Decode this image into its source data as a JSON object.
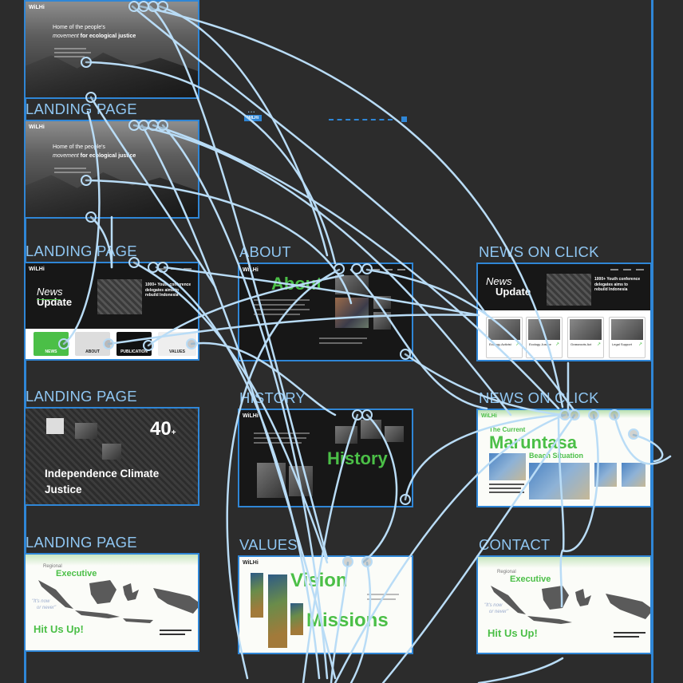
{
  "canvas": {
    "background": "#2c2c2c",
    "accent": "#2f86d6",
    "connector": "#b9dcf6",
    "brand_green": "#4bbf47"
  },
  "frames": {
    "landing_top": {
      "logo": "WiLHi",
      "hero_line1": "Home of the people's",
      "hero_italic": "movement",
      "hero_bold": " for ecological justice"
    },
    "landing_2": {
      "label": "LANDING PAGE",
      "logo": "WiLHi",
      "hero_line1": "Home of the people's",
      "hero_italic": "movement",
      "hero_bold": " for ecological justice"
    },
    "landing_3": {
      "label": "LANDING PAGE",
      "logo": "WiLHi",
      "news_italic": "News",
      "news_bold": "Update",
      "headline": "1000+ Youth conference delegates aims to rebuild Indonesia",
      "tile_news": "NEWS",
      "tile_about": "ABOUT",
      "tile_publication": "PUBLICATION",
      "tile_values": "VALUES"
    },
    "landing_4": {
      "label": "LANDING PAGE",
      "count": "40",
      "count_suffix": "+",
      "title_line1": "Independence Climate",
      "title_line2": "Justice"
    },
    "landing_5": {
      "label": "LANDING PAGE",
      "section": "Regional",
      "heading": "Executive",
      "quote1": "\"It's now",
      "quote2": "or never\"",
      "cta": "Hit Us Up!"
    },
    "about": {
      "label": "ABOUT",
      "logo": "WiLHi",
      "heading": "About"
    },
    "history": {
      "label": "HISTORY",
      "logo": "WiLHi",
      "heading": "History"
    },
    "values": {
      "label": "VALUES",
      "logo": "WiLHi",
      "heading1": "Vision",
      "heading2": "Missions"
    },
    "news_click_1": {
      "label": "NEWS ON CLICK",
      "news_italic": "News",
      "news_bold": "Update",
      "headline": "1000+ Youth conference delegates aims to rebuild Indonesia",
      "cards": [
        "Ecology Activist",
        "Ecology Justice",
        "Grassroots Act",
        "Legal Support"
      ]
    },
    "news_click_2": {
      "label": "NEWS ON CLICK",
      "logo": "WiLHi",
      "title_the": "The Current",
      "title_big": "Maruntasa",
      "title_sub": "Beach Situation"
    },
    "contact": {
      "label": "CONTACT",
      "section": "Regional",
      "heading": "Executive",
      "quote1": "\"It's now",
      "quote2": "or never\"",
      "cta": "Hit Us Up!"
    }
  },
  "ellipsis": "...",
  "toolbar_chip": "WiLHi"
}
